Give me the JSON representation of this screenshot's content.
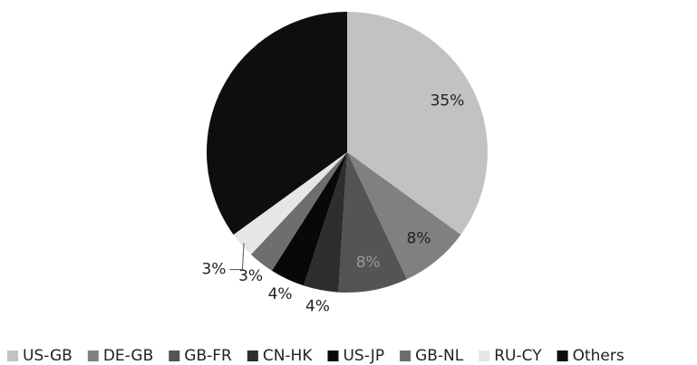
{
  "chart_data": {
    "type": "pie",
    "categories": [
      "US-GB",
      "DE-GB",
      "GB-FR",
      "CN-HK",
      "US-JP",
      "GB-NL",
      "RU-CY",
      "Others"
    ],
    "values": [
      35,
      8,
      8,
      4,
      4,
      3,
      3,
      35
    ],
    "value_labels": [
      "35%",
      "8%",
      "8%",
      "4%",
      "4%",
      "3%",
      "3%",
      null
    ],
    "colors": [
      "#c2c2c2",
      "#808080",
      "#545454",
      "#2e2e2e",
      "#080808",
      "#6e6e6e",
      "#e6e6e6",
      "#0e0e0e"
    ],
    "legend": "bottom"
  }
}
